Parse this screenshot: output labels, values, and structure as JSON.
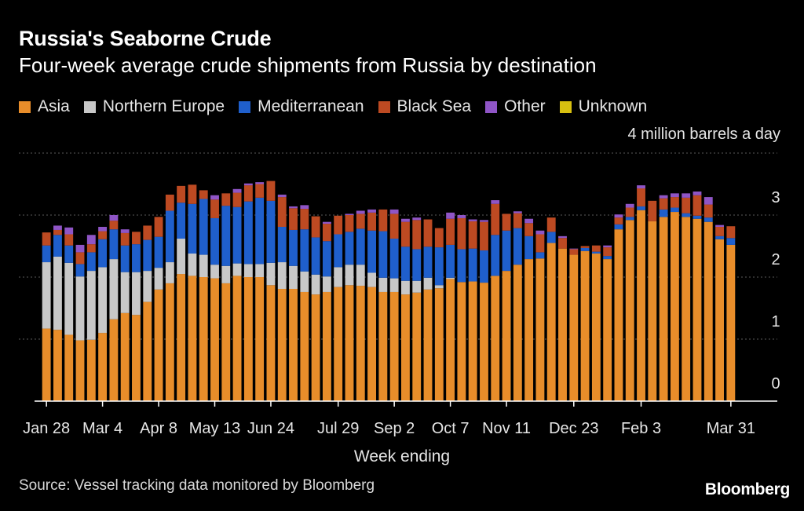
{
  "header": {
    "title": "Russia's Seaborne Crude",
    "subtitle": "Four-week average crude shipments from Russia by destination",
    "unit_label": "4 million barrels a day"
  },
  "footer": {
    "source": "Source: Vessel tracking data monitored by Bloomberg",
    "logo": "Bloomberg"
  },
  "colors": {
    "Asia": "#e88d2a",
    "Northern Europe": "#c8c8c8",
    "Mediterranean": "#1f5fcc",
    "Black Sea": "#bd4a22",
    "Other": "#8f55c6",
    "Unknown": "#d8c010",
    "grid": "#5a5a5a",
    "axis": "#ffffff"
  },
  "chart_data": {
    "type": "bar",
    "stacked": true,
    "title": "Russia's Seaborne Crude",
    "subtitle": "Four-week average crude shipments from Russia by destination",
    "xlabel": "Week ending",
    "ylabel": "",
    "ylim": [
      0,
      4
    ],
    "y_ticks": [
      0,
      1,
      2,
      3
    ],
    "x_tick_labels": [
      {
        "index": 0,
        "label": "Jan 28"
      },
      {
        "index": 5,
        "label": "Mar 4"
      },
      {
        "index": 10,
        "label": "Apr 8"
      },
      {
        "index": 15,
        "label": "May 13"
      },
      {
        "index": 20,
        "label": "Jun 24"
      },
      {
        "index": 26,
        "label": "Jul 29"
      },
      {
        "index": 31,
        "label": "Sep 2"
      },
      {
        "index": 36,
        "label": "Oct 7"
      },
      {
        "index": 41,
        "label": "Nov 11"
      },
      {
        "index": 47,
        "label": "Dec 23"
      },
      {
        "index": 53,
        "label": "Feb 3"
      },
      {
        "index": 61,
        "label": "Mar 31"
      }
    ],
    "legend": [
      "Asia",
      "Northern Europe",
      "Mediterranean",
      "Black Sea",
      "Other",
      "Unknown"
    ],
    "legend_position": "top-left",
    "grid": true,
    "series": [
      {
        "name": "Asia",
        "values": [
          1.17,
          1.15,
          1.07,
          0.98,
          0.99,
          1.1,
          1.32,
          1.42,
          1.39,
          1.6,
          1.8,
          1.9,
          2.05,
          2.02,
          2.0,
          1.98,
          1.9,
          2.02,
          2.0,
          2.0,
          1.87,
          1.81,
          1.81,
          1.76,
          1.72,
          1.76,
          1.84,
          1.87,
          1.86,
          1.84,
          1.76,
          1.76,
          1.72,
          1.75,
          1.8,
          1.82,
          1.97,
          1.92,
          1.93,
          1.91,
          2.02,
          2.1,
          2.2,
          2.29,
          2.3,
          2.55,
          2.46,
          2.36,
          2.42,
          2.38,
          2.29,
          2.77,
          2.92,
          3.08,
          2.9,
          2.97,
          3.05,
          2.97,
          2.94,
          2.89,
          2.61,
          2.52
        ]
      },
      {
        "name": "Northern Europe",
        "values": [
          1.07,
          1.18,
          1.16,
          1.03,
          1.11,
          1.06,
          0.97,
          0.66,
          0.69,
          0.5,
          0.35,
          0.34,
          0.57,
          0.36,
          0.36,
          0.22,
          0.28,
          0.2,
          0.21,
          0.21,
          0.36,
          0.43,
          0.37,
          0.33,
          0.32,
          0.25,
          0.32,
          0.33,
          0.34,
          0.23,
          0.23,
          0.22,
          0.22,
          0.19,
          0.19,
          0.05,
          0.02,
          0.0,
          0.0,
          0.0,
          0.0,
          0.0,
          0.0,
          0.0,
          0.0,
          0.0,
          0.0,
          0.0,
          0.0,
          0.0,
          0.0,
          0.0,
          0.0,
          0.0,
          0.0,
          0.0,
          0.0,
          0.0,
          0.0,
          0.0,
          0.0,
          0.0
        ]
      },
      {
        "name": "Mediterranean",
        "values": [
          0.27,
          0.35,
          0.28,
          0.2,
          0.3,
          0.45,
          0.48,
          0.43,
          0.45,
          0.5,
          0.5,
          0.83,
          0.58,
          0.8,
          0.9,
          0.75,
          0.97,
          0.91,
          1.01,
          1.07,
          1.0,
          0.57,
          0.58,
          0.68,
          0.6,
          0.57,
          0.53,
          0.53,
          0.58,
          0.68,
          0.75,
          0.64,
          0.55,
          0.51,
          0.5,
          0.61,
          0.53,
          0.53,
          0.53,
          0.52,
          0.66,
          0.65,
          0.59,
          0.37,
          0.1,
          0.18,
          0.0,
          0.0,
          0.05,
          0.03,
          0.05,
          0.08,
          0.05,
          0.06,
          0.0,
          0.12,
          0.07,
          0.06,
          0.05,
          0.07,
          0.05,
          0.11
        ]
      },
      {
        "name": "Black Sea",
        "values": [
          0.21,
          0.08,
          0.18,
          0.19,
          0.13,
          0.13,
          0.14,
          0.2,
          0.2,
          0.23,
          0.32,
          0.26,
          0.27,
          0.31,
          0.14,
          0.3,
          0.2,
          0.23,
          0.26,
          0.22,
          0.32,
          0.48,
          0.35,
          0.33,
          0.34,
          0.28,
          0.3,
          0.27,
          0.24,
          0.29,
          0.35,
          0.4,
          0.4,
          0.47,
          0.44,
          0.31,
          0.42,
          0.5,
          0.44,
          0.46,
          0.5,
          0.27,
          0.24,
          0.21,
          0.29,
          0.23,
          0.17,
          0.09,
          0.03,
          0.1,
          0.14,
          0.11,
          0.15,
          0.29,
          0.33,
          0.18,
          0.17,
          0.25,
          0.33,
          0.21,
          0.15,
          0.19
        ]
      },
      {
        "name": "Other",
        "values": [
          0.0,
          0.07,
          0.11,
          0.12,
          0.15,
          0.07,
          0.09,
          0.06,
          0.0,
          0.0,
          0.0,
          0.0,
          0.0,
          0.0,
          0.0,
          0.07,
          0.0,
          0.06,
          0.03,
          0.03,
          0.0,
          0.04,
          0.03,
          0.06,
          0.0,
          0.03,
          0.0,
          0.02,
          0.05,
          0.05,
          0.0,
          0.07,
          0.05,
          0.04,
          0.0,
          0.0,
          0.1,
          0.05,
          0.03,
          0.03,
          0.06,
          0.0,
          0.03,
          0.07,
          0.06,
          0.0,
          0.03,
          0.01,
          0.0,
          0.0,
          0.03,
          0.05,
          0.06,
          0.05,
          0.0,
          0.05,
          0.06,
          0.07,
          0.06,
          0.12,
          0.03,
          0.0
        ]
      },
      {
        "name": "Unknown",
        "values": [
          0.0,
          0.0,
          0.0,
          0.0,
          0.0,
          0.0,
          0.0,
          0.0,
          0.0,
          0.0,
          0.0,
          0.0,
          0.0,
          0.0,
          0.0,
          0.0,
          0.0,
          0.0,
          0.0,
          0.0,
          0.0,
          0.0,
          0.0,
          0.0,
          0.0,
          0.0,
          0.0,
          0.0,
          0.0,
          0.0,
          0.0,
          0.0,
          0.0,
          0.0,
          0.0,
          0.0,
          0.0,
          0.0,
          0.0,
          0.0,
          0.0,
          0.0,
          0.0,
          0.0,
          0.0,
          0.0,
          0.0,
          0.0,
          0.0,
          0.0,
          0.0,
          0.0,
          0.0,
          0.0,
          0.0,
          0.0,
          0.0,
          0.0,
          0.0,
          0.0,
          0.0,
          0.0
        ]
      }
    ]
  }
}
